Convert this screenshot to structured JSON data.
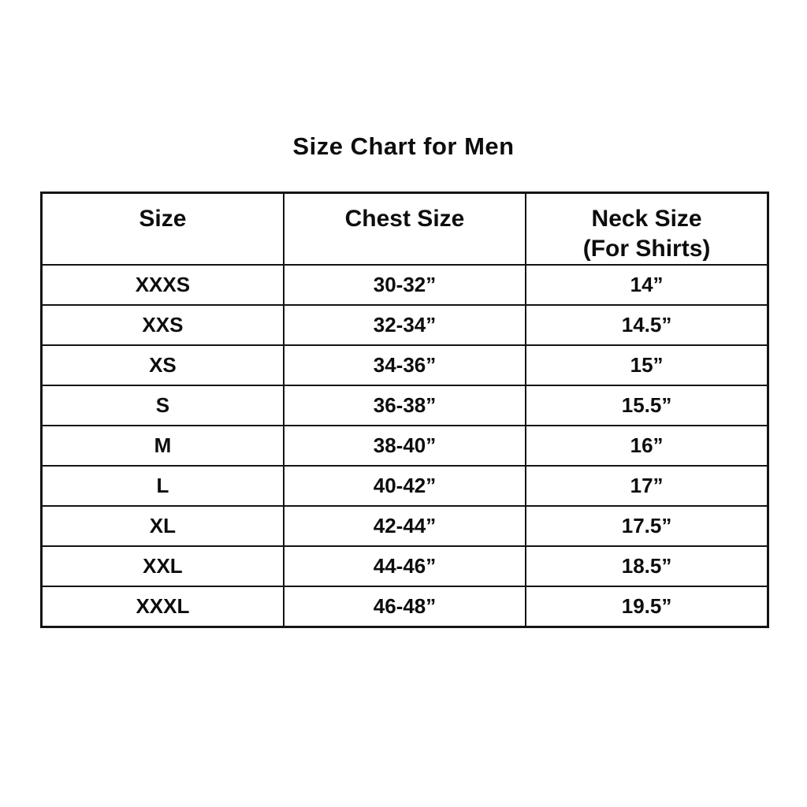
{
  "title": "Size Chart for Men",
  "colors": {
    "text": "#0d0d0d",
    "border": "#141414",
    "background": "#ffffff"
  },
  "chart_data": {
    "type": "table",
    "title": "Size Chart for Men",
    "columns": [
      "Size",
      "Chest Size",
      "Neck Size (For Shirts)"
    ],
    "header": {
      "size": "Size",
      "chest": "Chest Size",
      "neck_line1": "Neck Size",
      "neck_line2": "(For Shirts)"
    },
    "rows": [
      {
        "size": "XXXS",
        "chest": "30-32”",
        "neck": "14”"
      },
      {
        "size": "XXS",
        "chest": "32-34”",
        "neck": "14.5”"
      },
      {
        "size": "XS",
        "chest": "34-36”",
        "neck": "15”"
      },
      {
        "size": "S",
        "chest": "36-38”",
        "neck": "15.5”"
      },
      {
        "size": "M",
        "chest": "38-40”",
        "neck": "16”"
      },
      {
        "size": "L",
        "chest": "40-42”",
        "neck": "17”"
      },
      {
        "size": "XL",
        "chest": "42-44”",
        "neck": "17.5”"
      },
      {
        "size": "XXL",
        "chest": "44-46”",
        "neck": "18.5”"
      },
      {
        "size": "XXXL",
        "chest": "46-48”",
        "neck": "19.5”"
      }
    ]
  }
}
